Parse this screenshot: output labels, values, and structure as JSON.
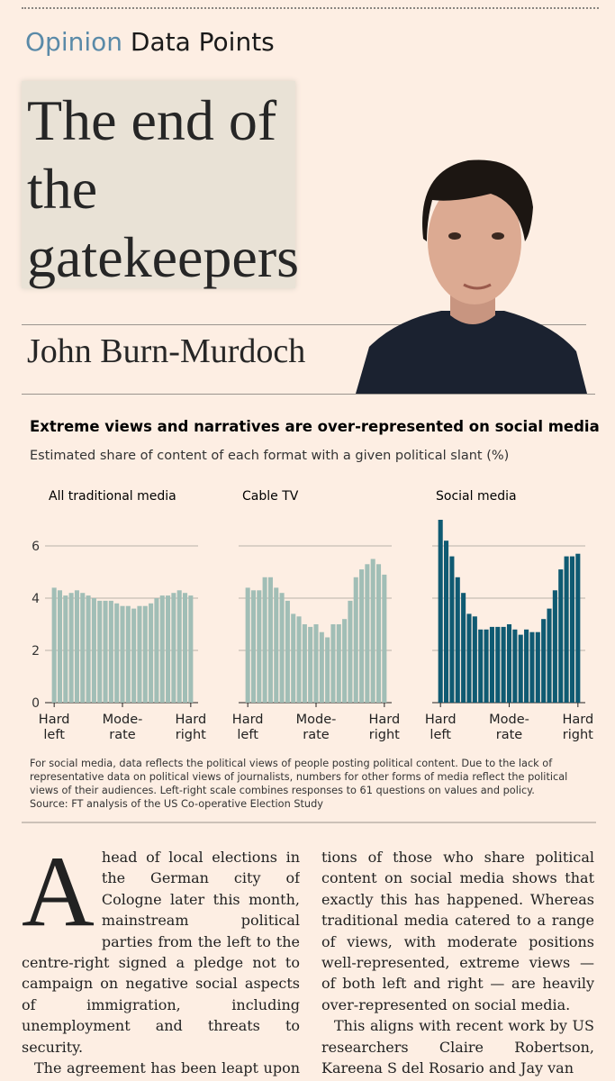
{
  "header": {
    "section": "Opinion",
    "column": "Data Points"
  },
  "headline": "The end of the gatekeepers",
  "author": "John Burn-Murdoch",
  "figure": {
    "title": "Extreme views and narratives are over-represented on social media",
    "subtitle": "Estimated share of content of each format with a given political slant (%)",
    "notes": "For social media, data reflects the political views of people posting political content. Due to the lack of representative data on political views of journalists, numbers for other forms of media reflect the political views of their audiences. Left-right scale combines responses to 61 questions on values and policy.",
    "source": "Source: FT analysis of the US Co-operative Election Study"
  },
  "chart_data": [
    {
      "type": "bar",
      "title": "All traditional media",
      "categories": [
        "Hard\nleft",
        null,
        null,
        null,
        null,
        null,
        null,
        null,
        null,
        null,
        null,
        null,
        "Mode-\nrate",
        null,
        null,
        null,
        null,
        null,
        null,
        null,
        null,
        null,
        null,
        null,
        "Hard\nright"
      ],
      "values": [
        4.4,
        4.3,
        4.1,
        4.2,
        4.3,
        4.2,
        4.1,
        4.0,
        3.9,
        3.9,
        3.9,
        3.8,
        3.7,
        3.7,
        3.6,
        3.7,
        3.7,
        3.8,
        4.0,
        4.1,
        4.1,
        4.2,
        4.3,
        4.2,
        4.1
      ],
      "color": "#a1beb6",
      "ylim": [
        0,
        7
      ],
      "yticks": [
        0,
        2,
        4,
        6
      ],
      "grid": true
    },
    {
      "type": "bar",
      "title": "Cable TV",
      "categories": [
        "Hard\nleft",
        null,
        null,
        null,
        null,
        null,
        null,
        null,
        null,
        null,
        null,
        null,
        "Mode-\nrate",
        null,
        null,
        null,
        null,
        null,
        null,
        null,
        null,
        null,
        null,
        null,
        "Hard\nright"
      ],
      "values": [
        4.4,
        4.3,
        4.3,
        4.8,
        4.8,
        4.4,
        4.2,
        3.9,
        3.4,
        3.3,
        3.0,
        2.9,
        3.0,
        2.7,
        2.5,
        3.0,
        3.0,
        3.2,
        3.9,
        4.8,
        5.1,
        5.3,
        5.5,
        5.3,
        4.9
      ],
      "color": "#a1beb6",
      "ylim": [
        0,
        7
      ],
      "yticks": [
        0,
        2,
        4,
        6
      ],
      "grid": true
    },
    {
      "type": "bar",
      "title": "Social media",
      "categories": [
        "Hard\nleft",
        null,
        null,
        null,
        null,
        null,
        null,
        null,
        null,
        null,
        null,
        null,
        "Mode-\nrate",
        null,
        null,
        null,
        null,
        null,
        null,
        null,
        null,
        null,
        null,
        null,
        "Hard\nright"
      ],
      "values": [
        7.0,
        6.2,
        5.6,
        4.8,
        4.2,
        3.4,
        3.3,
        2.8,
        2.8,
        2.9,
        2.9,
        2.9,
        3.0,
        2.8,
        2.6,
        2.8,
        2.7,
        2.7,
        3.2,
        3.6,
        4.3,
        5.1,
        5.6,
        5.6,
        5.7
      ],
      "color": "#0f5a72",
      "ylim": [
        0,
        7
      ],
      "yticks": [
        0,
        2,
        4,
        6
      ],
      "grid": true
    }
  ],
  "article": {
    "dropcap": "A",
    "columns": [
      [
        "head of local elections in the German city of Cologne later this month, mainstream political parties from the left to the centre-right signed a pledge not to campaign on negative social aspects of immigration, including unemployment and threats to security.",
        "The agreement has been leapt upon by prominent figures on the global"
      ],
      [
        "tions of those who share political content on social media shows that exactly this has happened. Whereas traditional media catered to a range of views, with moderate positions well-represented, extreme views — of both left and right — are heavily over-represented on social media.",
        "This aligns with recent work by US researchers Claire Robertson, Kareena S del Rosario and Jay van"
      ]
    ]
  }
}
